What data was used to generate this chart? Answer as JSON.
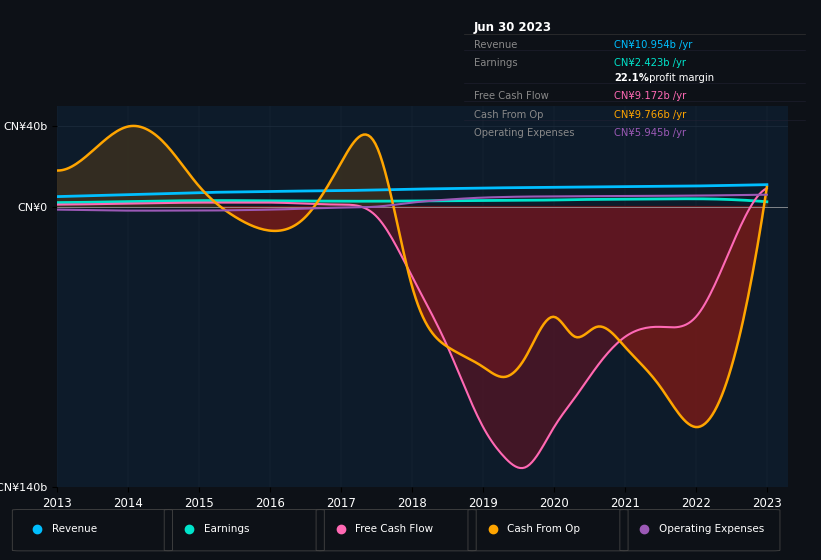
{
  "bg_color": "#0d1117",
  "plot_bg_color": "#0d1b2a",
  "revenue_color": "#00bfff",
  "earnings_color": "#00e5cc",
  "free_cash_flow_color": "#ff69b4",
  "cash_from_op_color": "#ffa500",
  "operating_expenses_color": "#9b59b6",
  "fill_color": "#6b1a1a",
  "legend_items": [
    "Revenue",
    "Earnings",
    "Free Cash Flow",
    "Cash From Op",
    "Operating Expenses"
  ],
  "legend_colors": [
    "#00bfff",
    "#00e5cc",
    "#ff69b4",
    "#ffa500",
    "#9b59b6"
  ]
}
